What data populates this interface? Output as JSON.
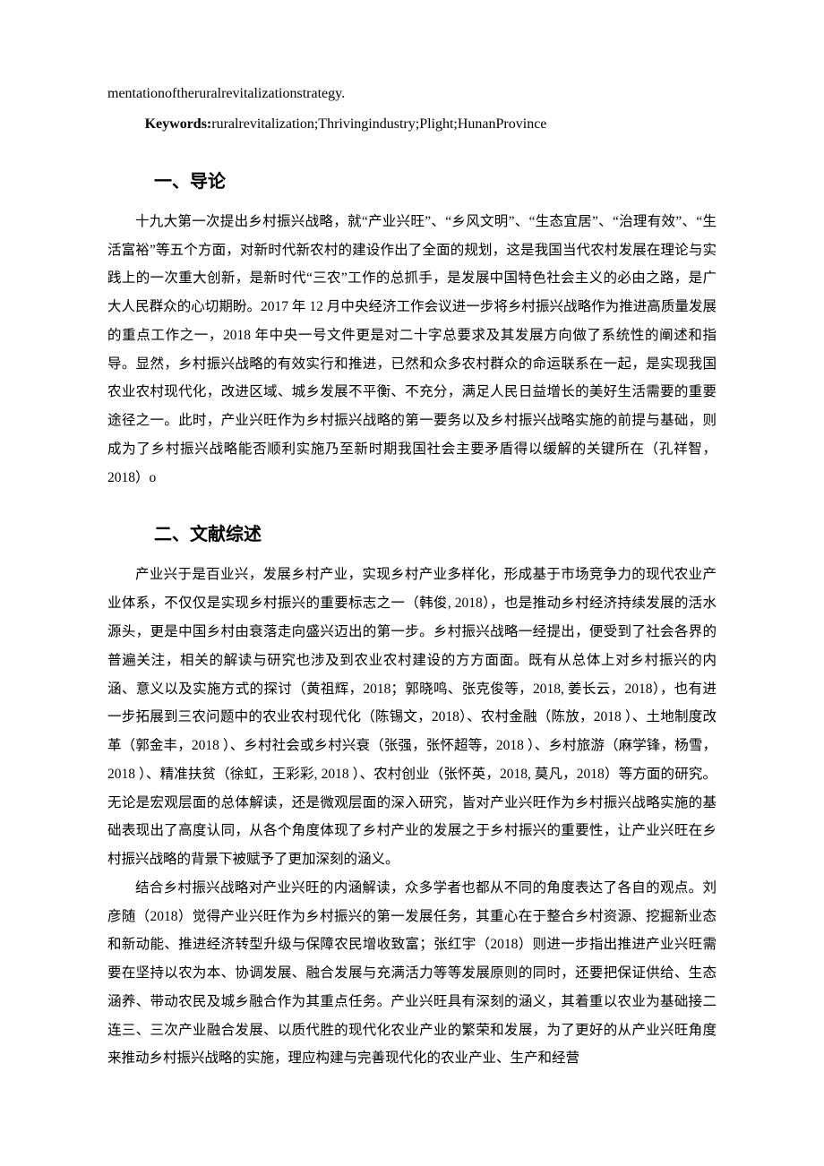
{
  "colors": {
    "background": "#ffffff",
    "text": "#000000"
  },
  "typography": {
    "body_font": "SimSun",
    "heading_font": "SimHei",
    "english_font": "Times New Roman",
    "body_size_pt": 12,
    "heading_size_pt": 15,
    "line_height": 2.05
  },
  "english": {
    "line1": "mentationoftheruralrevitalizationstrategy.",
    "keywords_label": "Keywords:",
    "keywords_text": "ruralrevitalization;Thrivingindustry;Plight;HunanProvince"
  },
  "section1": {
    "heading": "一、导论",
    "para1": "十九大第一次提出乡村振兴战略，就“产业兴旺”、“乡风文明”、“生态宜居”、“治理有效”、“生活富裕”等五个方面，对新时代新农村的建设作出了全面的规划，这是我国当代农村发展在理论与实践上的一次重大创新，是新时代“三农”工作的总抓手，是发展中国特色社会主义的必由之路，是广大人民群众的心切期盼。2017 年 12 月中央经济工作会议进一步将乡村振兴战略作为推进高质量发展的重点工作之一，2018 年中央一号文件更是对二十字总要求及其发展方向做了系统性的阐述和指导。显然，乡村振兴战略的有效实行和推进，已然和众多农村群众的命运联系在一起，是实现我国农业农村现代化，改进区域、城乡发展不平衡、不充分，满足人民日益增长的美好生活需要的重要途径之一。此时，产业兴旺作为乡村振兴战略的第一要务以及乡村振兴战略实施的前提与基础，则成为了乡村振兴战略能否顺利实施乃至新时期我国社会主要矛盾得以缓解的关键所在（孔祥智，2018）o"
  },
  "section2": {
    "heading": "二、文献综述",
    "para1": "产业兴于是百业兴，发展乡村产业，实现乡村产业多样化，形成基于市场竞争力的现代农业产业体系，不仅仅是实现乡村振兴的重要标志之一（韩俊, 2018），也是推动乡村经济持续发展的活水源头，更是中国乡村由衰落走向盛兴迈出的第一步。乡村振兴战略一经提出，便受到了社会各界的普遍关注，相关的解读与研究也涉及到农业农村建设的方方面面。既有从总体上对乡村振兴的内涵、意义以及实施方式的探讨（黄祖辉，2018；郭晓鸣、张克俊等，2018, 姜长云，2018），也有进一步拓展到三农问题中的农业农村现代化（陈锡文，2018）、农村金融（陈放，2018 ）、土地制度改革（郭金丰，2018 ）、乡村社会或乡村兴衰（张强，张怀超等，2018 ）、乡村旅游（麻学锋，杨雪，2018 ）、精准扶贫（徐虹，王彩彩, 2018 ）、农村创业（张怀英，2018, 莫凡，2018）等方面的研究。无论是宏观层面的总体解读，还是微观层面的深入研究，皆对产业兴旺作为乡村振兴战略实施的基础表现出了高度认同，从各个角度体现了乡村产业的发展之于乡村振兴的重要性，让产业兴旺在乡村振兴战略的背景下被赋予了更加深刻的涵义。",
    "para2": "结合乡村振兴战略对产业兴旺的内涵解读，众多学者也都从不同的角度表达了各自的观点。刘彦随（2018）觉得产业兴旺作为乡村振兴的第一发展任务，其重心在于整合乡村资源、挖掘新业态和新动能、推进经济转型升级与保障农民增收致富；张红宇（2018）则进一步指出推进产业兴旺需要在坚持以农为本、协调发展、融合发展与充满活力等等发展原则的同时，还要把保证供给、生态涵养、带动农民及城乡融合作为其重点任务。产业兴旺具有深刻的涵义，其着重以农业为基础接二连三、三次产业融合发展、以质代胜的现代化农业产业的繁荣和发展，为了更好的从产业兴旺角度来推动乡村振兴战略的实施，理应构建与完善现代化的农业产业、生产和经营"
  }
}
